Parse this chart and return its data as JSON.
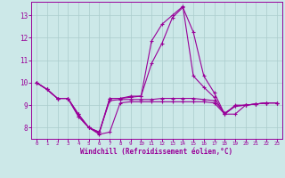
{
  "xlabel": "Windchill (Refroidissement éolien,°C)",
  "background_color": "#cce8e8",
  "grid_color": "#aacccc",
  "line_color": "#990099",
  "ylim": [
    7.5,
    13.6
  ],
  "xlim": [
    -0.5,
    23.5
  ],
  "yticks": [
    8,
    9,
    10,
    11,
    12,
    13
  ],
  "xticks": [
    0,
    1,
    2,
    3,
    4,
    5,
    6,
    7,
    8,
    9,
    10,
    11,
    12,
    13,
    14,
    15,
    16,
    17,
    18,
    19,
    20,
    21,
    22,
    23
  ],
  "series": [
    [
      10.0,
      9.7,
      9.3,
      9.3,
      8.6,
      8.0,
      7.7,
      7.8,
      9.1,
      9.15,
      9.15,
      9.15,
      9.15,
      9.15,
      9.15,
      9.15,
      9.15,
      9.1,
      8.6,
      8.95,
      9.0,
      9.05,
      9.1,
      9.1
    ],
    [
      10.0,
      9.7,
      9.3,
      9.3,
      8.6,
      8.0,
      7.8,
      9.2,
      9.25,
      9.25,
      9.25,
      9.25,
      9.3,
      9.3,
      9.3,
      9.3,
      9.25,
      9.2,
      8.65,
      8.95,
      9.0,
      9.05,
      9.1,
      9.1
    ],
    [
      10.0,
      9.7,
      9.3,
      9.3,
      8.5,
      8.0,
      7.75,
      9.3,
      9.3,
      9.35,
      9.4,
      10.85,
      11.75,
      12.9,
      13.35,
      12.25,
      10.3,
      9.55,
      8.6,
      8.6,
      9.0,
      9.05,
      9.1,
      9.1
    ],
    [
      10.0,
      9.7,
      9.3,
      9.3,
      8.5,
      8.0,
      7.8,
      9.3,
      9.3,
      9.4,
      9.4,
      11.85,
      12.6,
      13.0,
      13.4,
      10.3,
      9.8,
      9.35,
      8.6,
      9.0,
      9.0,
      9.05,
      9.1,
      9.1
    ]
  ]
}
